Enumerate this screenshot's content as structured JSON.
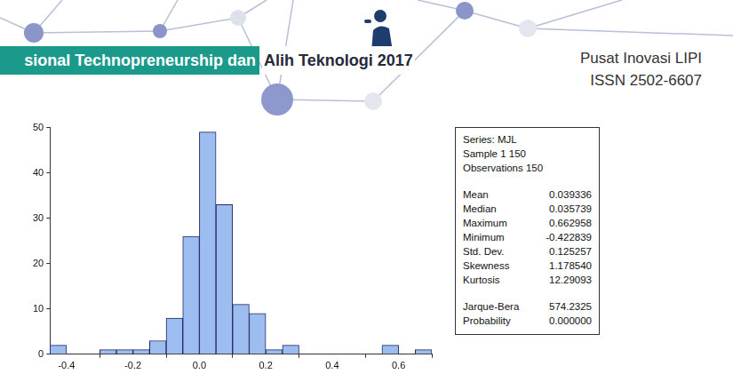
{
  "header": {
    "banner_left": "sional Technopreneurship dan",
    "banner_right": "Alih Teknologi 2017",
    "publisher": "Pusat Inovasi LIPI",
    "issn": "ISSN 2502-6607"
  },
  "chart_data": {
    "type": "histogram",
    "bins": [
      -0.45,
      -0.4,
      -0.35,
      -0.3,
      -0.25,
      -0.2,
      -0.15,
      -0.1,
      -0.05,
      0,
      0.05,
      0.1,
      0.15,
      0.2,
      0.25,
      0.3,
      0.35,
      0.4,
      0.45,
      0.5,
      0.55,
      0.6,
      0.65,
      0.7
    ],
    "values": [
      2,
      0,
      0,
      1,
      1,
      1,
      3,
      8,
      26,
      49,
      33,
      11,
      9,
      1,
      2,
      0,
      0,
      0,
      0,
      0,
      2,
      0,
      1
    ],
    "color": "#9dbcf0",
    "xlim": [
      -0.45,
      0.7
    ],
    "xticks": [
      -0.4,
      -0.2,
      {
        "value": 0,
        "label": "0.0"
      },
      0.2,
      0.4,
      0.6
    ],
    "ylim": [
      0,
      50
    ],
    "yticks": [
      0,
      10,
      20,
      30,
      40,
      50
    ],
    "grid": false
  },
  "stats_box": {
    "lines": [
      "Series: MJL",
      "Sample 1 150",
      "Observations 150"
    ],
    "stats": [
      {
        "name": "Mean",
        "value": "0.039336"
      },
      {
        "name": "Median",
        "value": "0.035739"
      },
      {
        "name": "Maximum",
        "value": "0.662958"
      },
      {
        "name": "Minimum",
        "value": "-0.422839"
      },
      {
        "name": "Std. Dev.",
        "value": "0.125257"
      },
      {
        "name": "Skewness",
        "value": "1.178540"
      },
      {
        "name": "Kurtosis",
        "value": "12.29093"
      }
    ],
    "test": [
      {
        "name": "Jarque-Bera",
        "value": "574.2325"
      },
      {
        "name": "Probability",
        "value": "0.000000"
      }
    ]
  }
}
